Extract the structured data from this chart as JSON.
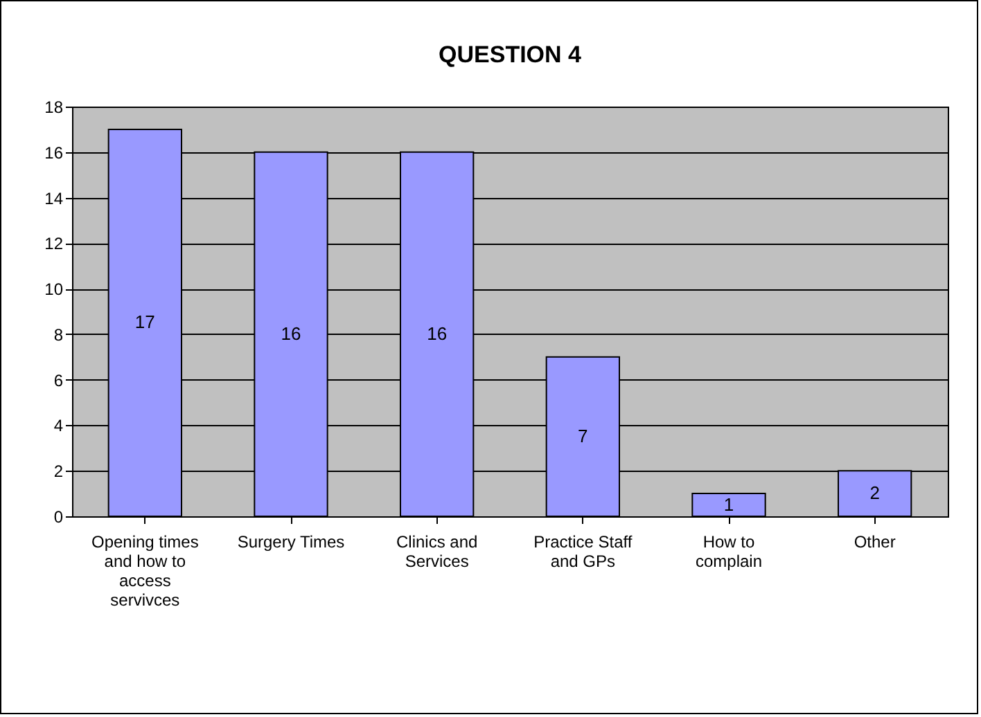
{
  "chart_data": {
    "type": "bar",
    "title": "QUESTION 4",
    "categories": [
      "Opening times and how to access servivces",
      "Surgery Times",
      "Clinics and Services",
      "Practice Staff and GPs",
      "How to complain",
      "Other"
    ],
    "values": [
      17,
      16,
      16,
      7,
      1,
      2
    ],
    "color": "#9999ff",
    "ylim": [
      0,
      18
    ],
    "yticks": [
      0,
      2,
      4,
      6,
      8,
      10,
      12,
      14,
      16,
      18
    ],
    "grid": "y",
    "data_labels": true
  }
}
